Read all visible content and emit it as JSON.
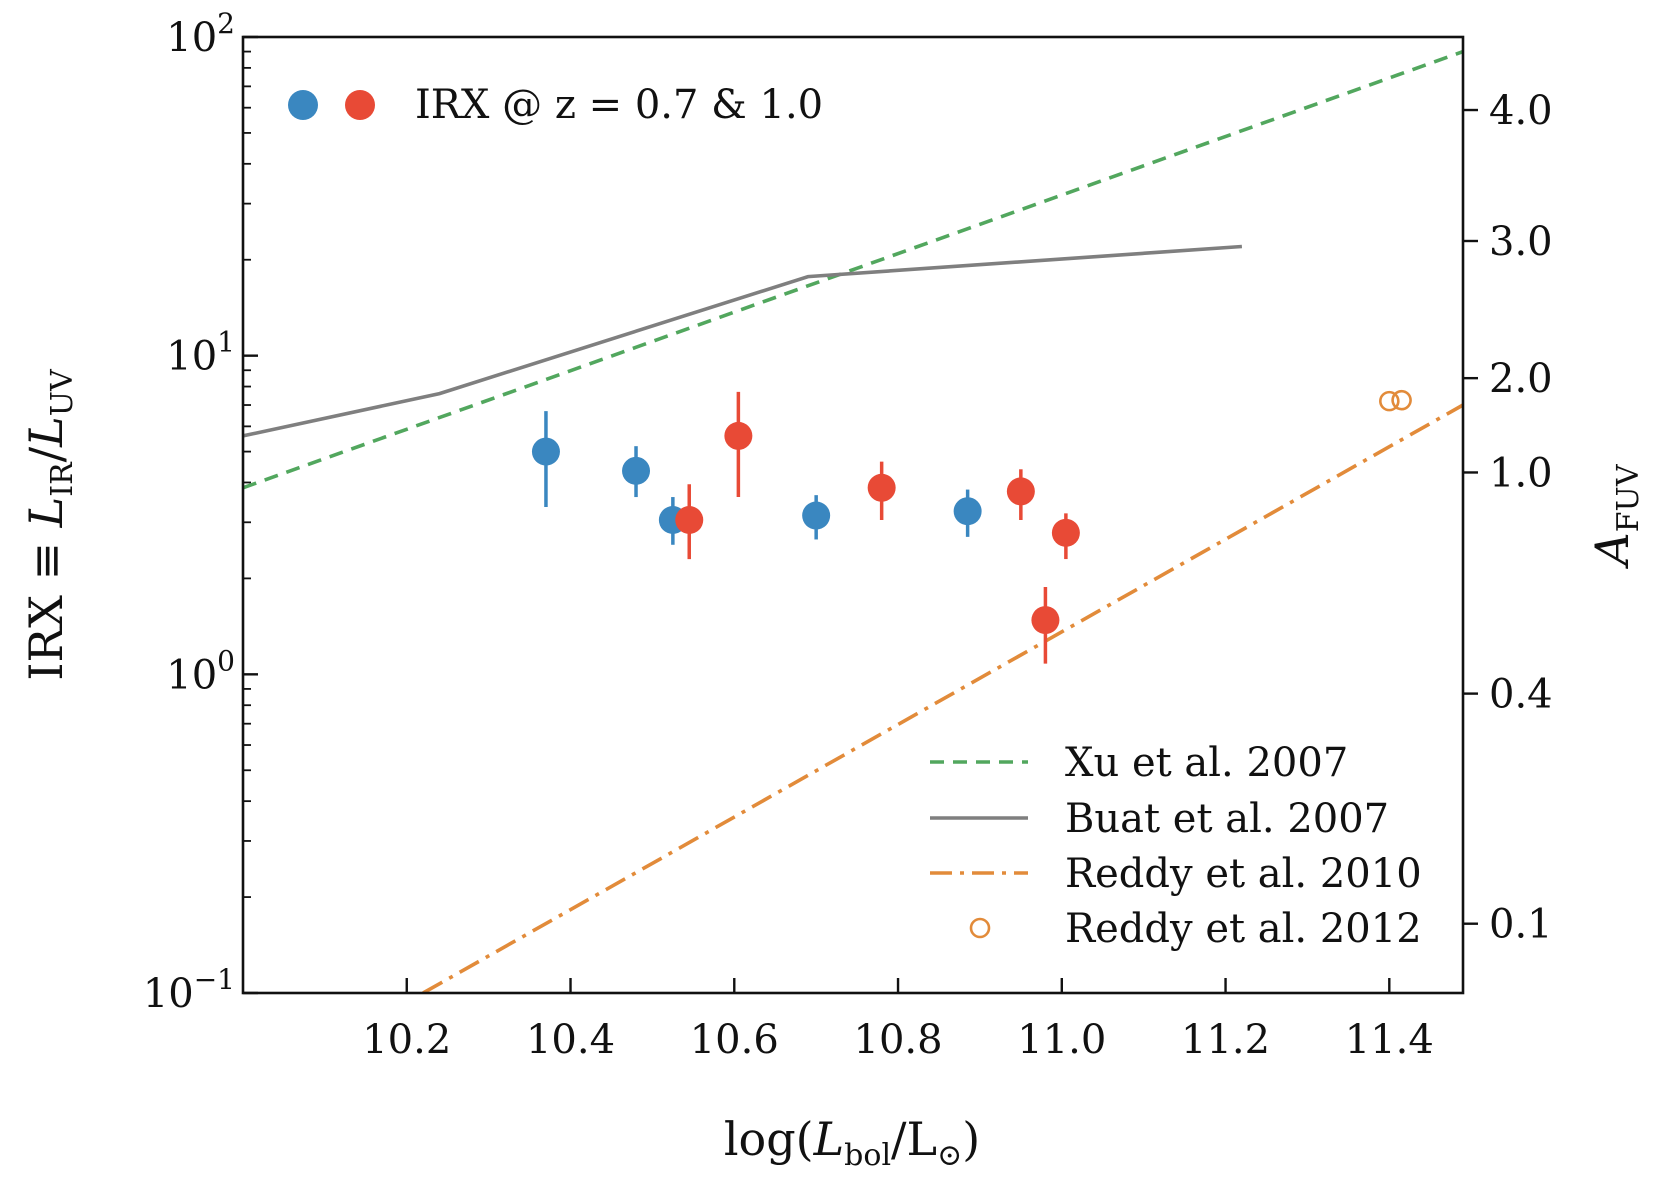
{
  "chart_data": {
    "type": "scatter",
    "title": "",
    "xlabel": {
      "pre": "log(",
      "italic": "L",
      "sub": "bol",
      "mid": "/L",
      "subsym": "⊙",
      "post": ")"
    },
    "ylabel": {
      "pre": "IRX ≡ ",
      "i1": "L",
      "s1": "IR",
      "slash": "/",
      "i2": "L",
      "s2": "UV"
    },
    "y2label": {
      "italic": "A",
      "sub": "FUV"
    },
    "xlim": [
      10.0,
      11.49
    ],
    "ylim_log10": [
      -1,
      2
    ],
    "yscale": "log",
    "x_ticks": [
      {
        "value": 10.2,
        "label": "10.2"
      },
      {
        "value": 10.4,
        "label": "10.4"
      },
      {
        "value": 10.6,
        "label": "10.6"
      },
      {
        "value": 10.8,
        "label": "10.8"
      },
      {
        "value": 11.0,
        "label": "11.0"
      },
      {
        "value": 11.2,
        "label": "11.2"
      },
      {
        "value": 11.4,
        "label": "11.4"
      }
    ],
    "y_ticks": [
      {
        "exp": -1,
        "base": "10",
        "sup": "−1"
      },
      {
        "exp": 0,
        "base": "10",
        "sup": "0"
      },
      {
        "exp": 1,
        "base": "10",
        "sup": "1"
      },
      {
        "exp": 2,
        "base": "10",
        "sup": "2"
      }
    ],
    "y2_ticks": [
      {
        "irx": 0.165,
        "label": "0.1"
      },
      {
        "irx": 0.87,
        "label": "0.4"
      },
      {
        "irx": 4.3,
        "label": "1.0"
      },
      {
        "irx": 8.5,
        "label": "2.0"
      },
      {
        "irx": 22.9,
        "label": "3.0"
      },
      {
        "irx": 59.0,
        "label": "4.0"
      }
    ],
    "series": [
      {
        "name": "IRX @ z = 0.7",
        "color": "#3a87c0",
        "kind": "errorbar",
        "points": [
          {
            "x": 10.37,
            "y": 5.0,
            "ylo": 3.35,
            "yhi": 6.7
          },
          {
            "x": 10.48,
            "y": 4.35,
            "ylo": 3.6,
            "yhi": 5.2
          },
          {
            "x": 10.525,
            "y": 3.05,
            "ylo": 2.55,
            "yhi": 3.6
          },
          {
            "x": 10.7,
            "y": 3.15,
            "ylo": 2.65,
            "yhi": 3.65
          },
          {
            "x": 10.885,
            "y": 3.25,
            "ylo": 2.7,
            "yhi": 3.8
          }
        ]
      },
      {
        "name": "IRX @ z = 1.0",
        "color": "#e84a36",
        "kind": "errorbar",
        "points": [
          {
            "x": 10.545,
            "y": 3.05,
            "ylo": 2.3,
            "yhi": 3.95
          },
          {
            "x": 10.605,
            "y": 5.6,
            "ylo": 3.6,
            "yhi": 7.7
          },
          {
            "x": 10.78,
            "y": 3.85,
            "ylo": 3.05,
            "yhi": 4.65
          },
          {
            "x": 10.95,
            "y": 3.75,
            "ylo": 3.05,
            "yhi": 4.4
          },
          {
            "x": 10.98,
            "y": 1.48,
            "ylo": 1.08,
            "yhi": 1.88
          },
          {
            "x": 11.005,
            "y": 2.78,
            "ylo": 2.3,
            "yhi": 3.2
          }
        ]
      },
      {
        "name": "Xu et al. 2007",
        "color": "#52a75e",
        "kind": "line",
        "dash": "dashed",
        "points": [
          {
            "x": 10.0,
            "y": 3.85
          },
          {
            "x": 11.49,
            "y": 90.0
          }
        ]
      },
      {
        "name": "Buat et al. 2007",
        "color": "#7f7f7f",
        "kind": "line",
        "dash": "solid",
        "points": [
          {
            "x": 10.0,
            "y": 5.6
          },
          {
            "x": 10.24,
            "y": 7.6
          },
          {
            "x": 10.69,
            "y": 17.7
          },
          {
            "x": 11.22,
            "y": 22.0
          }
        ]
      },
      {
        "name": "Reddy et al. 2010",
        "color": "#e28b3a",
        "kind": "line",
        "dash": "dashdot",
        "points": [
          {
            "x": 10.22,
            "y": 0.1
          },
          {
            "x": 11.49,
            "y": 7.0
          }
        ]
      },
      {
        "name": "Reddy et al. 2012",
        "color": "#e28b3a",
        "kind": "open-circle",
        "points": [
          {
            "x": 11.4,
            "y": 7.2
          },
          {
            "x": 11.415,
            "y": 7.25
          }
        ]
      }
    ],
    "legend_top_left": {
      "label": "IRX @ z = 0.7 & 1.0",
      "colors": [
        "#3a87c0",
        "#e84a36"
      ]
    },
    "legend_bottom_right": {
      "placement": "lower-right",
      "entries": [
        {
          "label": "Xu et al. 2007",
          "color": "#52a75e",
          "style": "dashed"
        },
        {
          "label": "Buat et al. 2007",
          "color": "#7f7f7f",
          "style": "solid"
        },
        {
          "label": "Reddy et al. 2010",
          "color": "#e28b3a",
          "style": "dashdot"
        },
        {
          "label": "Reddy et al. 2012",
          "color": "#e28b3a",
          "style": "open-circle"
        }
      ]
    }
  }
}
